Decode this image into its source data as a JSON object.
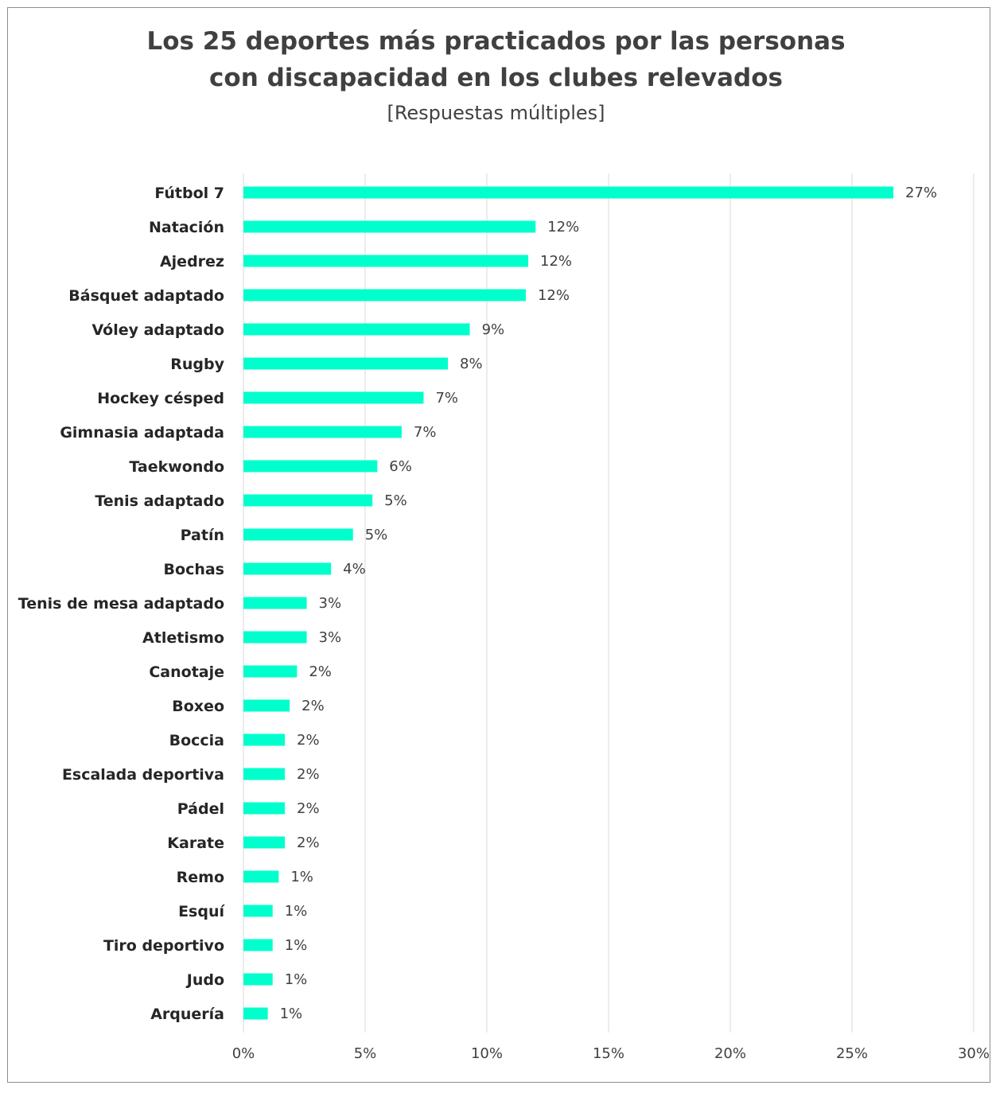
{
  "chart_data": {
    "type": "bar",
    "orientation": "horizontal",
    "title": "Los 25 deportes más practicados por las personas con discapacidad en los clubes relevados",
    "title_lines": [
      "Los 25 deportes más practicados por las personas",
      "con discapacidad en los clubes relevados"
    ],
    "subtitle": "[Respuestas múltiples]",
    "categories": [
      "Fútbol 7",
      "Natación",
      "Ajedrez",
      "Básquet adaptado",
      "Vóley adaptado",
      "Rugby",
      "Hockey césped",
      "Gimnasia adaptada",
      "Taekwondo",
      "Tenis adaptado",
      "Patín",
      "Bochas",
      "Tenis de mesa adaptado",
      "Atletismo",
      "Canotaje",
      "Boxeo",
      "Boccia",
      "Escalada deportiva",
      "Pádel",
      "Karate",
      "Remo",
      "Esquí",
      "Tiro deportivo",
      "Judo",
      "Arquería"
    ],
    "values": [
      26.7,
      12.0,
      11.7,
      11.6,
      9.3,
      8.4,
      7.4,
      6.5,
      5.5,
      5.3,
      4.5,
      3.6,
      2.6,
      2.6,
      2.2,
      1.9,
      1.7,
      1.7,
      1.7,
      1.7,
      1.45,
      1.2,
      1.2,
      1.2,
      1.0
    ],
    "data_labels": [
      "27%",
      "12%",
      "12%",
      "12%",
      "9%",
      "8%",
      "7%",
      "7%",
      "6%",
      "5%",
      "5%",
      "4%",
      "3%",
      "3%",
      "2%",
      "2%",
      "2%",
      "2%",
      "2%",
      "2%",
      "1%",
      "1%",
      "1%",
      "1%",
      "1%"
    ],
    "x_ticks": [
      "0%",
      "5%",
      "10%",
      "15%",
      "20%",
      "25%",
      "30%"
    ],
    "xlim": [
      0,
      30
    ],
    "xlabel": "",
    "ylabel": "",
    "grid": "vertical",
    "legend": "none",
    "bar_color": "#00ffcc"
  }
}
